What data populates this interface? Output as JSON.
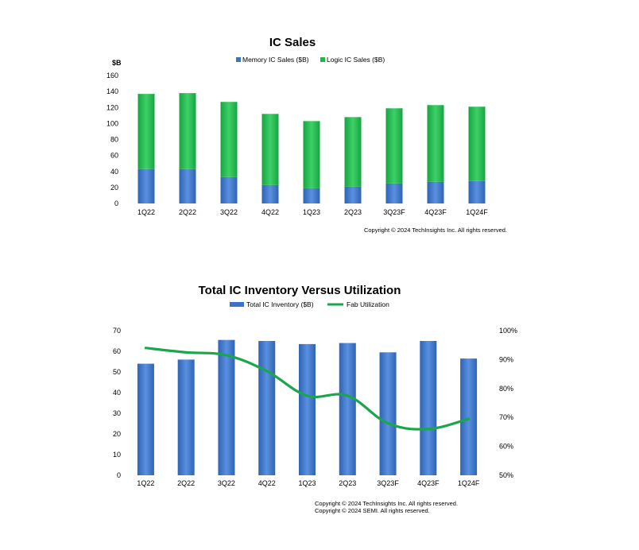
{
  "chart_data": [
    {
      "type": "bar",
      "title": "IC Sales",
      "unit_label": "$B",
      "categories": [
        "1Q22",
        "2Q22",
        "3Q22",
        "4Q22",
        "1Q23",
        "2Q23",
        "3Q23F",
        "4Q23F",
        "1Q24F"
      ],
      "stacked": true,
      "series": [
        {
          "name": "Memory IC Sales ($B)",
          "values": [
            43,
            43,
            33,
            23,
            19,
            21,
            25,
            27,
            28
          ]
        },
        {
          "name": "Logic IC Sales ($B)",
          "values": [
            94,
            95,
            94,
            89,
            84,
            87,
            94,
            96,
            93
          ]
        }
      ],
      "ylim": [
        0,
        160
      ],
      "yticks": [
        0,
        20,
        40,
        60,
        80,
        100,
        120,
        140,
        160
      ],
      "legend": "top-center",
      "grid": false,
      "copyright": "Copyright © 2024 TechInsights Inc.  All rights reserved.",
      "colors": {
        "memory": "#3a74c9",
        "logic": "#1fb84f"
      }
    },
    {
      "type": "bar",
      "title": "Total IC Inventory Versus Utilization",
      "categories": [
        "1Q22",
        "2Q22",
        "3Q22",
        "4Q22",
        "1Q23",
        "2Q23",
        "3Q23F",
        "4Q23F",
        "1Q24F"
      ],
      "series": [
        {
          "name": "Total IC Inventory ($B)",
          "axis": "left",
          "kind": "bar",
          "values": [
            54,
            56,
            65.5,
            65,
            63.5,
            64,
            59.5,
            65,
            56.5
          ]
        },
        {
          "name": "Fab Utilization",
          "axis": "right",
          "kind": "line",
          "values": [
            94,
            92.5,
            91.5,
            86,
            77.5,
            77.5,
            68,
            66,
            69.5
          ]
        }
      ],
      "ylim": [
        0,
        70
      ],
      "yticks": [
        0,
        10,
        20,
        30,
        40,
        50,
        60,
        70
      ],
      "y2lim": [
        50,
        100
      ],
      "y2ticks": [
        "50%",
        "60%",
        "70%",
        "80%",
        "90%",
        "100%"
      ],
      "legend": "top-center",
      "grid": false,
      "copyright_lines": [
        "Copyright © 2024 TechInsights Inc.  All rights reserved.",
        "Copyright © 2024 SEMI.  All rights reserved."
      ],
      "colors": {
        "bar": "#3a74c9",
        "line": "#1aa64c"
      }
    }
  ]
}
